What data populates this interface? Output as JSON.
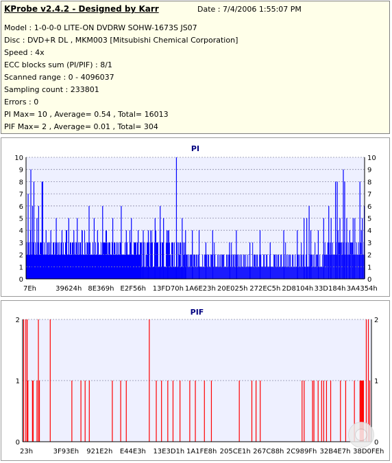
{
  "header": {
    "app_title": "KProbe v2.4.2 - Designed by Karr",
    "date": "Date : 7/4/2006 1:55:07 PM"
  },
  "info_lines": [
    "Model : 1-0-0-0 LITE-ON DVDRW SOHW-1673S JS07",
    "Disc : DVD+R DL , MKM003 [Mitsubishi Chemical Corporation]",
    "Speed : 4x",
    "ECC blocks sum (PI/PIF) : 8/1",
    "Scanned range : 0 - 4096037",
    "Sampling count : 233801",
    "Errors : 0",
    "PI Max= 10 , Average= 0.54 , Total= 16013",
    "PIF Max= 2 , Average= 0.01 , Total= 304"
  ],
  "chart_data": [
    {
      "type": "bar",
      "title": "PI",
      "color": "#0000ff",
      "ylim": [
        0,
        10
      ],
      "yticks": [
        "0",
        "1",
        "2",
        "3",
        "4",
        "5",
        "6",
        "7",
        "8",
        "9",
        "10"
      ],
      "xticks": [
        "7Eh",
        "39624h",
        "8E369h",
        "E2F56h",
        "13FD70h",
        "1A6E23h",
        "20E025h",
        "272EC5h",
        "2D8104h",
        "33D184h",
        "3A4354h"
      ],
      "grid": true,
      "spikes": [
        {
          "x": 0.005,
          "y": 7
        },
        {
          "x": 0.013,
          "y": 9
        },
        {
          "x": 0.018,
          "y": 6
        },
        {
          "x": 0.022,
          "y": 8
        },
        {
          "x": 0.031,
          "y": 5
        },
        {
          "x": 0.036,
          "y": 6
        },
        {
          "x": 0.046,
          "y": 8
        },
        {
          "x": 0.048,
          "y": 8
        },
        {
          "x": 0.058,
          "y": 4
        },
        {
          "x": 0.072,
          "y": 4
        },
        {
          "x": 0.088,
          "y": 5
        },
        {
          "x": 0.105,
          "y": 4
        },
        {
          "x": 0.125,
          "y": 5
        },
        {
          "x": 0.14,
          "y": 4
        },
        {
          "x": 0.15,
          "y": 5
        },
        {
          "x": 0.165,
          "y": 4
        },
        {
          "x": 0.185,
          "y": 6
        },
        {
          "x": 0.2,
          "y": 5
        },
        {
          "x": 0.21,
          "y": 4
        },
        {
          "x": 0.225,
          "y": 6
        },
        {
          "x": 0.255,
          "y": 5
        },
        {
          "x": 0.28,
          "y": 6
        },
        {
          "x": 0.295,
          "y": 4
        },
        {
          "x": 0.31,
          "y": 5
        },
        {
          "x": 0.33,
          "y": 4
        },
        {
          "x": 0.345,
          "y": 4
        },
        {
          "x": 0.36,
          "y": 4
        },
        {
          "x": 0.38,
          "y": 5
        },
        {
          "x": 0.395,
          "y": 6
        },
        {
          "x": 0.405,
          "y": 5
        },
        {
          "x": 0.418,
          "y": 4
        },
        {
          "x": 0.443,
          "y": 10
        },
        {
          "x": 0.46,
          "y": 5
        },
        {
          "x": 0.47,
          "y": 4
        },
        {
          "x": 0.49,
          "y": 4
        },
        {
          "x": 0.51,
          "y": 4
        },
        {
          "x": 0.53,
          "y": 3
        },
        {
          "x": 0.55,
          "y": 4
        },
        {
          "x": 0.6,
          "y": 3
        },
        {
          "x": 0.62,
          "y": 4
        },
        {
          "x": 0.66,
          "y": 3
        },
        {
          "x": 0.69,
          "y": 4
        },
        {
          "x": 0.72,
          "y": 3
        },
        {
          "x": 0.76,
          "y": 4
        },
        {
          "x": 0.8,
          "y": 4
        },
        {
          "x": 0.82,
          "y": 5
        },
        {
          "x": 0.828,
          "y": 5
        },
        {
          "x": 0.835,
          "y": 6
        },
        {
          "x": 0.84,
          "y": 4
        },
        {
          "x": 0.862,
          "y": 4
        },
        {
          "x": 0.878,
          "y": 5
        },
        {
          "x": 0.893,
          "y": 6
        },
        {
          "x": 0.9,
          "y": 5
        },
        {
          "x": 0.913,
          "y": 8
        },
        {
          "x": 0.918,
          "y": 8
        },
        {
          "x": 0.926,
          "y": 5
        },
        {
          "x": 0.936,
          "y": 9
        },
        {
          "x": 0.94,
          "y": 8
        },
        {
          "x": 0.946,
          "y": 5
        },
        {
          "x": 0.955,
          "y": 4
        },
        {
          "x": 0.965,
          "y": 5
        },
        {
          "x": 0.97,
          "y": 5
        },
        {
          "x": 0.985,
          "y": 8
        },
        {
          "x": 0.992,
          "y": 5
        },
        {
          "x": 0.998,
          "y": 6
        }
      ],
      "background_regions": [
        {
          "from": 0.0,
          "to": 0.34,
          "low": 2,
          "high": 3
        },
        {
          "from": 0.34,
          "to": 0.47,
          "low": 1,
          "high": 3
        },
        {
          "from": 0.47,
          "to": 0.88,
          "low": 1,
          "high": 2
        },
        {
          "from": 0.88,
          "to": 1.0,
          "low": 2,
          "high": 3
        }
      ]
    },
    {
      "type": "bar",
      "title": "PIF",
      "color": "#ff0000",
      "ylim": [
        0,
        2
      ],
      "yticks": [
        "0",
        "1",
        "2"
      ],
      "xticks": [
        "23h",
        "3F93Eh",
        "921E2h",
        "E44E3h",
        "13E3D1h",
        "1A1FE8h",
        "205CE1h",
        "267C88h",
        "2C989Fh",
        "32B4E7h",
        "38D0FEh"
      ],
      "grid": true,
      "spikes": [
        {
          "x": 0.002,
          "y": 2
        },
        {
          "x": 0.008,
          "y": 2
        },
        {
          "x": 0.012,
          "y": 2
        },
        {
          "x": 0.014,
          "y": 1
        },
        {
          "x": 0.027,
          "y": 1
        },
        {
          "x": 0.029,
          "y": 1
        },
        {
          "x": 0.04,
          "y": 1
        },
        {
          "x": 0.044,
          "y": 2
        },
        {
          "x": 0.047,
          "y": 1
        },
        {
          "x": 0.078,
          "y": 2
        },
        {
          "x": 0.14,
          "y": 1
        },
        {
          "x": 0.166,
          "y": 1
        },
        {
          "x": 0.178,
          "y": 1
        },
        {
          "x": 0.19,
          "y": 1
        },
        {
          "x": 0.256,
          "y": 1
        },
        {
          "x": 0.28,
          "y": 1
        },
        {
          "x": 0.296,
          "y": 1
        },
        {
          "x": 0.362,
          "y": 2
        },
        {
          "x": 0.382,
          "y": 1
        },
        {
          "x": 0.397,
          "y": 1
        },
        {
          "x": 0.415,
          "y": 1
        },
        {
          "x": 0.43,
          "y": 1
        },
        {
          "x": 0.45,
          "y": 1
        },
        {
          "x": 0.478,
          "y": 1
        },
        {
          "x": 0.494,
          "y": 1
        },
        {
          "x": 0.52,
          "y": 1
        },
        {
          "x": 0.54,
          "y": 1
        },
        {
          "x": 0.62,
          "y": 1
        },
        {
          "x": 0.656,
          "y": 1
        },
        {
          "x": 0.668,
          "y": 1
        },
        {
          "x": 0.68,
          "y": 1
        },
        {
          "x": 0.8,
          "y": 1
        },
        {
          "x": 0.806,
          "y": 1
        },
        {
          "x": 0.83,
          "y": 1
        },
        {
          "x": 0.834,
          "y": 1
        },
        {
          "x": 0.846,
          "y": 1
        },
        {
          "x": 0.856,
          "y": 1
        },
        {
          "x": 0.862,
          "y": 1
        },
        {
          "x": 0.87,
          "y": 1
        },
        {
          "x": 0.882,
          "y": 1
        },
        {
          "x": 0.91,
          "y": 1
        },
        {
          "x": 0.925,
          "y": 1
        },
        {
          "x": 0.95,
          "y": 1
        },
        {
          "x": 0.966,
          "y": 1
        },
        {
          "x": 0.968,
          "y": 1
        },
        {
          "x": 0.97,
          "y": 1
        },
        {
          "x": 0.972,
          "y": 1
        },
        {
          "x": 0.974,
          "y": 1
        },
        {
          "x": 0.976,
          "y": 1
        },
        {
          "x": 0.984,
          "y": 2
        },
        {
          "x": 0.99,
          "y": 2
        },
        {
          "x": 0.994,
          "y": 1
        }
      ]
    }
  ]
}
